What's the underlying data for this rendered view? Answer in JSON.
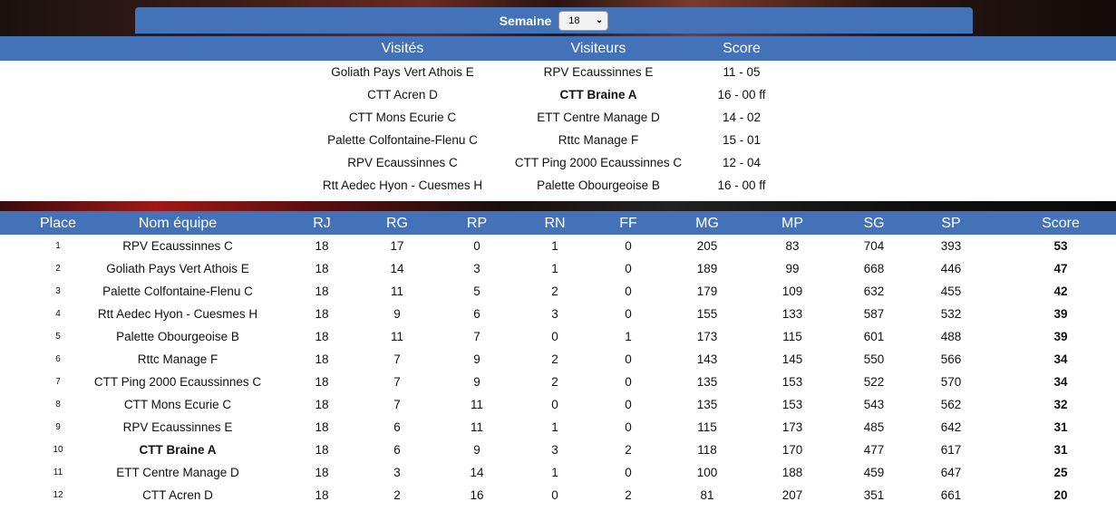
{
  "week_selector": {
    "label": "Semaine",
    "value": "18"
  },
  "matches_header": {
    "home": "Visités",
    "away": "Visiteurs",
    "score": "Score"
  },
  "matches": [
    {
      "home": "Goliath Pays Vert Athois E",
      "away": "RPV Ecaussinnes E",
      "score": "11 - 05",
      "away_bold": false
    },
    {
      "home": "CTT Acren D",
      "away": "CTT Braine A",
      "score": "16 - 00 ff",
      "away_bold": true
    },
    {
      "home": "CTT Mons Ecurie C",
      "away": "ETT Centre Manage D",
      "score": "14 - 02",
      "away_bold": false
    },
    {
      "home": "Palette Colfontaine-Flenu C",
      "away": "Rttc Manage F",
      "score": "15 - 01",
      "away_bold": false
    },
    {
      "home": "RPV Ecaussinnes C",
      "away": "CTT Ping 2000 Ecaussinnes C",
      "score": "12 - 04",
      "away_bold": false
    },
    {
      "home": "Rtt Aedec Hyon - Cuesmes H",
      "away": "Palette Obourgeoise B",
      "score": "16 - 00 ff",
      "away_bold": false
    }
  ],
  "standings_header": {
    "place": "Place",
    "team": "Nom équipe",
    "rj": "RJ",
    "rg": "RG",
    "rp": "RP",
    "rn": "RN",
    "ff": "FF",
    "mg": "MG",
    "mp": "MP",
    "sg": "SG",
    "sp": "SP",
    "score": "Score"
  },
  "standings": [
    {
      "place": "1",
      "team": "RPV Ecaussinnes C",
      "rj": "18",
      "rg": "17",
      "rp": "0",
      "rn": "1",
      "ff": "0",
      "mg": "205",
      "mp": "83",
      "sg": "704",
      "sp": "393",
      "score": "53",
      "team_bold": false
    },
    {
      "place": "2",
      "team": "Goliath Pays Vert Athois E",
      "rj": "18",
      "rg": "14",
      "rp": "3",
      "rn": "1",
      "ff": "0",
      "mg": "189",
      "mp": "99",
      "sg": "668",
      "sp": "446",
      "score": "47",
      "team_bold": false
    },
    {
      "place": "3",
      "team": "Palette Colfontaine-Flenu C",
      "rj": "18",
      "rg": "11",
      "rp": "5",
      "rn": "2",
      "ff": "0",
      "mg": "179",
      "mp": "109",
      "sg": "632",
      "sp": "455",
      "score": "42",
      "team_bold": false
    },
    {
      "place": "4",
      "team": "Rtt Aedec Hyon - Cuesmes H",
      "rj": "18",
      "rg": "9",
      "rp": "6",
      "rn": "3",
      "ff": "0",
      "mg": "155",
      "mp": "133",
      "sg": "587",
      "sp": "532",
      "score": "39",
      "team_bold": false
    },
    {
      "place": "5",
      "team": "Palette Obourgeoise B",
      "rj": "18",
      "rg": "11",
      "rp": "7",
      "rn": "0",
      "ff": "1",
      "mg": "173",
      "mp": "115",
      "sg": "601",
      "sp": "488",
      "score": "39",
      "team_bold": false
    },
    {
      "place": "6",
      "team": "Rttc Manage F",
      "rj": "18",
      "rg": "7",
      "rp": "9",
      "rn": "2",
      "ff": "0",
      "mg": "143",
      "mp": "145",
      "sg": "550",
      "sp": "566",
      "score": "34",
      "team_bold": false
    },
    {
      "place": "7",
      "team": "CTT Ping 2000 Ecaussinnes C",
      "rj": "18",
      "rg": "7",
      "rp": "9",
      "rn": "2",
      "ff": "0",
      "mg": "135",
      "mp": "153",
      "sg": "522",
      "sp": "570",
      "score": "34",
      "team_bold": false
    },
    {
      "place": "8",
      "team": "CTT Mons Ecurie C",
      "rj": "18",
      "rg": "7",
      "rp": "11",
      "rn": "0",
      "ff": "0",
      "mg": "135",
      "mp": "153",
      "sg": "543",
      "sp": "562",
      "score": "32",
      "team_bold": false
    },
    {
      "place": "9",
      "team": "RPV Ecaussinnes E",
      "rj": "18",
      "rg": "6",
      "rp": "11",
      "rn": "1",
      "ff": "0",
      "mg": "115",
      "mp": "173",
      "sg": "485",
      "sp": "642",
      "score": "31",
      "team_bold": false
    },
    {
      "place": "10",
      "team": "CTT Braine A",
      "rj": "18",
      "rg": "6",
      "rp": "9",
      "rn": "3",
      "ff": "2",
      "mg": "118",
      "mp": "170",
      "sg": "477",
      "sp": "617",
      "score": "31",
      "team_bold": true
    },
    {
      "place": "11",
      "team": "ETT Centre Manage D",
      "rj": "18",
      "rg": "3",
      "rp": "14",
      "rn": "1",
      "ff": "0",
      "mg": "100",
      "mp": "188",
      "sg": "459",
      "sp": "647",
      "score": "25",
      "team_bold": false
    },
    {
      "place": "12",
      "team": "CTT Acren D",
      "rj": "18",
      "rg": "2",
      "rp": "16",
      "rn": "0",
      "ff": "2",
      "mg": "81",
      "mp": "207",
      "sg": "351",
      "sp": "661",
      "score": "20",
      "team_bold": false
    }
  ]
}
